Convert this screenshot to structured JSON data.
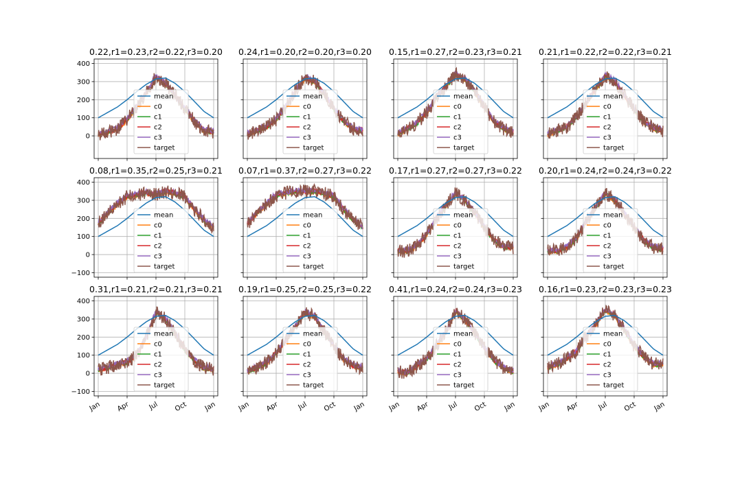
{
  "figure": {
    "background": "#ffffff"
  },
  "chart_data": {
    "type": "line",
    "layout": "3x4 grid of subplots, shared x and y axes",
    "x_axis": {
      "ticks": [
        "Jan",
        "Apr",
        "Jul",
        "Oct",
        "Jan"
      ],
      "tick_rotation": 30,
      "range": [
        "Jan",
        "Jan (next year)"
      ]
    },
    "y_axis": {
      "ticks_row1": [
        0,
        100,
        200,
        300,
        400
      ],
      "ticks_rows23": [
        -100,
        0,
        100,
        200,
        300,
        400
      ],
      "ylim": [
        -125,
        425
      ]
    },
    "grid": true,
    "legend": {
      "placement": "center",
      "entries": [
        "mean",
        "c0",
        "c1",
        "c2",
        "c3",
        "target"
      ]
    },
    "series_colors": {
      "mean": "#1f77b4",
      "c0": "#ff7f0e",
      "c1": "#2ca02c",
      "c2": "#d62728",
      "c3": "#9467bd",
      "target": "#8c564b"
    },
    "mean_curve": {
      "x_months": [
        0,
        1,
        2,
        3,
        4,
        5,
        6,
        7,
        8,
        9,
        10,
        11,
        12
      ],
      "y": [
        100,
        130,
        160,
        200,
        245,
        285,
        315,
        320,
        290,
        245,
        190,
        135,
        100
      ]
    },
    "panels": [
      {
        "title": "0.22,r1=0.23,r2=0.22,r3=0.20",
        "target_profile": {
          "x_months": [
            0,
            1,
            2,
            3,
            4,
            5,
            6,
            7,
            8,
            9,
            10,
            11,
            12
          ],
          "y": [
            10,
            20,
            40,
            90,
            160,
            240,
            330,
            290,
            220,
            150,
            80,
            30,
            20
          ]
        }
      },
      {
        "title": "0.24,r1=0.20,r2=0.20,r3=0.20",
        "target_profile": {
          "x_months": [
            0,
            1,
            2,
            3,
            4,
            5,
            6,
            7,
            8,
            9,
            10,
            11,
            12
          ],
          "y": [
            10,
            30,
            50,
            90,
            160,
            250,
            320,
            300,
            230,
            150,
            80,
            40,
            30
          ]
        }
      },
      {
        "title": "0.15,r1=0.27,r2=0.23,r3=0.21",
        "target_profile": {
          "x_months": [
            0,
            1,
            2,
            3,
            4,
            5,
            6,
            7,
            8,
            9,
            10,
            11,
            12
          ],
          "y": [
            10,
            40,
            70,
            130,
            210,
            270,
            340,
            310,
            250,
            160,
            80,
            40,
            20
          ]
        }
      },
      {
        "title": "0.21,r1=0.22,r2=0.22,r3=0.21",
        "target_profile": {
          "x_months": [
            0,
            1,
            2,
            3,
            4,
            5,
            6,
            7,
            8,
            9,
            10,
            11,
            12
          ],
          "y": [
            10,
            30,
            50,
            100,
            180,
            260,
            330,
            300,
            220,
            150,
            80,
            40,
            30
          ]
        }
      },
      {
        "title": "0.08,r1=0.35,r2=0.25,r3=0.21",
        "target_profile": {
          "x_months": [
            0,
            1,
            2,
            3,
            4,
            5,
            6,
            7,
            8,
            9,
            10,
            11,
            12
          ],
          "y": [
            170,
            230,
            280,
            320,
            330,
            340,
            330,
            350,
            340,
            320,
            250,
            190,
            150
          ]
        }
      },
      {
        "title": "0.07,r1=0.37,r2=0.27,r3=0.22",
        "target_profile": {
          "x_months": [
            0,
            1,
            2,
            3,
            4,
            5,
            6,
            7,
            8,
            9,
            10,
            11,
            12
          ],
          "y": [
            170,
            230,
            280,
            330,
            340,
            350,
            350,
            350,
            340,
            320,
            250,
            190,
            150
          ]
        }
      },
      {
        "title": "0.17,r1=0.27,r2=0.27,r3=0.22",
        "target_profile": {
          "x_months": [
            0,
            1,
            2,
            3,
            4,
            5,
            6,
            7,
            8,
            9,
            10,
            11,
            12
          ],
          "y": [
            20,
            20,
            50,
            110,
            200,
            270,
            340,
            300,
            230,
            150,
            80,
            40,
            40
          ]
        }
      },
      {
        "title": "0.20,r1=0.24,r2=0.24,r3=0.22",
        "target_profile": {
          "x_months": [
            0,
            1,
            2,
            3,
            4,
            5,
            6,
            7,
            8,
            9,
            10,
            11,
            12
          ],
          "y": [
            20,
            20,
            40,
            90,
            180,
            260,
            340,
            300,
            230,
            150,
            80,
            40,
            30
          ]
        }
      },
      {
        "title": "0.31,r1=0.21,r2=0.21,r3=0.21",
        "target_profile": {
          "x_months": [
            0,
            1,
            2,
            3,
            4,
            5,
            6,
            7,
            8,
            9,
            10,
            11,
            12
          ],
          "y": [
            20,
            30,
            50,
            60,
            100,
            200,
            340,
            300,
            220,
            130,
            70,
            30,
            20
          ]
        }
      },
      {
        "title": "0.19,r1=0.25,r2=0.25,r3=0.22",
        "target_profile": {
          "x_months": [
            0,
            1,
            2,
            3,
            4,
            5,
            6,
            7,
            8,
            9,
            10,
            11,
            12
          ],
          "y": [
            10,
            30,
            60,
            110,
            180,
            260,
            340,
            310,
            230,
            150,
            80,
            40,
            30
          ]
        }
      },
      {
        "title": "0.41,r1=0.24,r2=0.24,r3=0.23",
        "target_profile": {
          "x_months": [
            0,
            1,
            2,
            3,
            4,
            5,
            6,
            7,
            8,
            9,
            10,
            11,
            12
          ],
          "y": [
            10,
            0,
            40,
            80,
            150,
            230,
            340,
            300,
            220,
            140,
            70,
            30,
            10
          ]
        }
      },
      {
        "title": "0.16,r1=0.23,r2=0.23,r3=0.23",
        "target_profile": {
          "x_months": [
            0,
            1,
            2,
            3,
            4,
            5,
            6,
            7,
            8,
            9,
            10,
            11,
            12
          ],
          "y": [
            30,
            50,
            80,
            120,
            200,
            270,
            350,
            320,
            240,
            150,
            90,
            50,
            50
          ]
        }
      }
    ]
  }
}
